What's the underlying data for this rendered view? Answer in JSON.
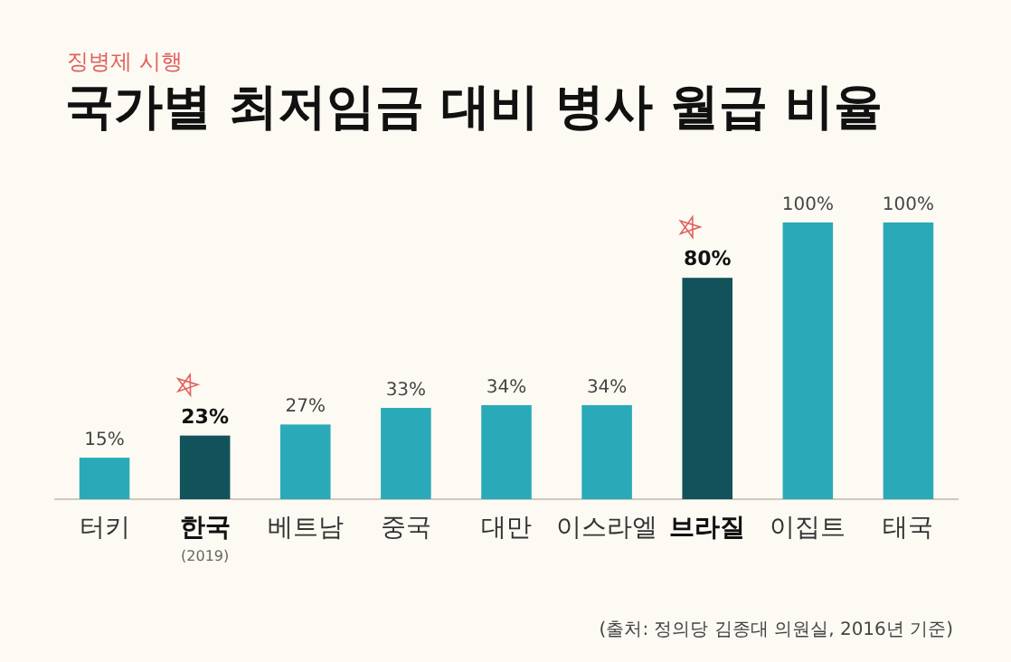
{
  "chart_data": {
    "type": "bar",
    "title": "국가별 최저임금 대비 병사 월급 비율",
    "subtitle": "징병제 시행",
    "categories": [
      "터키",
      "한국\n(2019)",
      "베트남",
      "중국",
      "대만",
      "이스라엘",
      "브라질",
      "이집트",
      "태국"
    ],
    "values": [
      15,
      23,
      27,
      33,
      34,
      34,
      80,
      100,
      100
    ],
    "value_labels": [
      "15%",
      "23%",
      "27%",
      "33%",
      "34%",
      "34%",
      "80%",
      "100%",
      "100%"
    ],
    "colors": [
      "#2aaab8",
      "#12525a",
      "#2aaab8",
      "#2aaab8",
      "#2aaab8",
      "#2aaab8",
      "#12525a",
      "#2aaab8",
      "#2aaab8"
    ],
    "annotations": [
      "(출처: 정의당 김종대 의원실, 2016년  기준)"
    ]
  }
}
